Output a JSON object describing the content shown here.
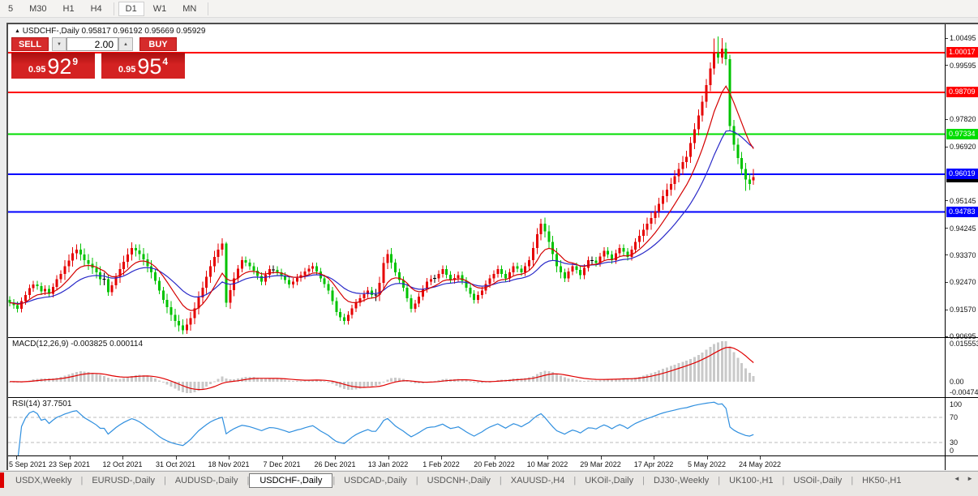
{
  "toolbar": {
    "periods": [
      "5",
      "M30",
      "H1",
      "H4",
      "D1",
      "W1",
      "MN"
    ],
    "active": "D1"
  },
  "chart": {
    "title_symbol": "USDCHF-,Daily",
    "title_ohlc": "0.95817 0.96192 0.95669 0.95929",
    "trade_panel": {
      "sell_label": "SELL",
      "buy_label": "BUY",
      "volume": "2.00",
      "sell_price": {
        "base": "0.95",
        "big": "92",
        "sup": "9"
      },
      "buy_price": {
        "base": "0.95",
        "big": "95",
        "sup": "4"
      }
    },
    "levels": [
      {
        "label": "1.00017",
        "value": 1.00017,
        "color": "#ff0000"
      },
      {
        "label": "0.98709",
        "value": 0.98709,
        "color": "#ff0000"
      },
      {
        "label": "0.97334",
        "value": 0.97334,
        "color": "#00dd00"
      },
      {
        "label": "0.96019",
        "value": 0.96019,
        "color": "#0000ff"
      },
      {
        "label": "0.94783",
        "value": 0.94783,
        "color": "#0000ff"
      }
    ],
    "current_price": {
      "label": "0.95929",
      "value": 0.95929,
      "color": "#000000"
    },
    "price_axis_labels": [
      {
        "label": "1.00495",
        "value": 1.00495
      },
      {
        "label": "0.99595",
        "value": 0.99595
      },
      {
        "label": "0.97820",
        "value": 0.9782
      },
      {
        "label": "0.96920",
        "value": 0.9692
      },
      {
        "label": "0.95145",
        "value": 0.95145
      },
      {
        "label": "0.94245",
        "value": 0.94245
      },
      {
        "label": "0.93370",
        "value": 0.9337
      },
      {
        "label": "0.92470",
        "value": 0.9247
      },
      {
        "label": "0.91570",
        "value": 0.9157
      },
      {
        "label": "0.90695",
        "value": 0.90695
      }
    ]
  },
  "macd_pane": {
    "label": "MACD(12,26,9) -0.003825 0.000114",
    "axis_max_label": "0.0155534",
    "axis_zero_label": "0.00",
    "axis_min_label": "-0.0047479"
  },
  "rsi_pane": {
    "label": "RSI(14) 37.7501",
    "axis_labels": [
      {
        "label": "100",
        "value": 100
      },
      {
        "label": "70",
        "value": 70
      },
      {
        "label": "30",
        "value": 30
      },
      {
        "label": "0",
        "value": 0
      }
    ],
    "levels": [
      70,
      30
    ]
  },
  "date_axis": {
    "labels": [
      "5 Sep 2021",
      "23 Sep 2021",
      "12 Oct 2021",
      "31 Oct 2021",
      "18 Nov 2021",
      "7 Dec 2021",
      "26 Dec 2021",
      "13 Jan 2022",
      "1 Feb 2022",
      "20 Feb 2022",
      "10 Mar 2022",
      "29 Mar 2022",
      "17 Apr 2022",
      "5 May 2022",
      "24 May 2022"
    ]
  },
  "tabbar": {
    "tabs": [
      "USDX,Weekly",
      "EURUSD-,Daily",
      "AUDUSD-,Daily",
      "USDCHF-,Daily",
      "USDCAD-,Daily",
      "USDCNH-,Daily",
      "XAUUSD-,H4",
      "UKOil-,Daily",
      "DJ30-,Weekly",
      "UK100-,H1",
      "USOil-,Daily",
      "HK50-,H1"
    ],
    "active": "USDCHF-,Daily",
    "left_arrow": "◄",
    "right_arrow": "►"
  },
  "colors": {
    "bull": "#e60000",
    "bear": "#00c300",
    "doji": "#000000",
    "ma_fast": "#d40000",
    "ma_slow": "#2929c8",
    "macd_hist": "#c9c9c9",
    "macd_signal": "#e00000",
    "rsi_line": "#2f8fdf",
    "rsi_level_dash": "#bbbbbb",
    "badge_text": "#ffffff"
  },
  "chart_data": {
    "type": "candlestick",
    "symbol": "USDCHF-",
    "timeframe": "Daily",
    "ohlc_current": {
      "open": 0.95817,
      "high": 0.96192,
      "low": 0.95669,
      "close": 0.95929
    },
    "price_range": [
      0.90695,
      1.00495
    ],
    "indicators": {
      "ma_fast_period": 10,
      "ma_slow_period": 22,
      "macd": "12,26,9",
      "rsi_period": 14
    },
    "candles": [
      [
        0.919,
        0.9202,
        0.9168,
        0.918
      ],
      [
        0.918,
        0.9192,
        0.916,
        0.9172
      ],
      [
        0.9172,
        0.9184,
        0.9148,
        0.916
      ],
      [
        0.916,
        0.9197,
        0.9148,
        0.9185
      ],
      [
        0.9185,
        0.9217,
        0.9173,
        0.9205
      ],
      [
        0.9205,
        0.924,
        0.9193,
        0.9228
      ],
      [
        0.9228,
        0.9252,
        0.9216,
        0.924
      ],
      [
        0.924,
        0.9252,
        0.9223,
        0.9235
      ],
      [
        0.9235,
        0.9247,
        0.9206,
        0.9218
      ],
      [
        0.9218,
        0.9237,
        0.9206,
        0.9225
      ],
      [
        0.9225,
        0.9237,
        0.9198,
        0.921
      ],
      [
        0.921,
        0.9244,
        0.9198,
        0.9232
      ],
      [
        0.9232,
        0.927,
        0.922,
        0.9258
      ],
      [
        0.9258,
        0.9287,
        0.9246,
        0.9275
      ],
      [
        0.9275,
        0.932,
        0.9255,
        0.93
      ],
      [
        0.93,
        0.9338,
        0.928,
        0.9318
      ],
      [
        0.9318,
        0.9362,
        0.9298,
        0.9342
      ],
      [
        0.9342,
        0.9372,
        0.9322,
        0.9355
      ],
      [
        0.9355,
        0.9375,
        0.9318,
        0.9338
      ],
      [
        0.9338,
        0.9358,
        0.93,
        0.932
      ],
      [
        0.932,
        0.934,
        0.9288,
        0.9308
      ],
      [
        0.9308,
        0.9328,
        0.9275,
        0.9295
      ],
      [
        0.9295,
        0.9315,
        0.926,
        0.928
      ],
      [
        0.928,
        0.93,
        0.9238,
        0.9258
      ],
      [
        0.9258,
        0.9278,
        0.9238,
        0.9258
      ],
      [
        0.9258,
        0.927,
        0.9203,
        0.9215
      ],
      [
        0.9215,
        0.925,
        0.9203,
        0.9238
      ],
      [
        0.9238,
        0.9277,
        0.9226,
        0.9265
      ],
      [
        0.9265,
        0.931,
        0.9245,
        0.929
      ],
      [
        0.929,
        0.9335,
        0.927,
        0.9315
      ],
      [
        0.9315,
        0.9358,
        0.9295,
        0.9338
      ],
      [
        0.9338,
        0.9378,
        0.9318,
        0.936
      ],
      [
        0.936,
        0.9372,
        0.9332,
        0.9352
      ],
      [
        0.9352,
        0.9372,
        0.932,
        0.934
      ],
      [
        0.934,
        0.936,
        0.9302,
        0.9322
      ],
      [
        0.9322,
        0.9342,
        0.928,
        0.93
      ],
      [
        0.93,
        0.932,
        0.926,
        0.928
      ],
      [
        0.928,
        0.9292,
        0.924,
        0.9252
      ],
      [
        0.9252,
        0.9264,
        0.9208,
        0.922
      ],
      [
        0.922,
        0.9232,
        0.9178,
        0.919
      ],
      [
        0.919,
        0.921,
        0.9145,
        0.9165
      ],
      [
        0.9165,
        0.9185,
        0.912,
        0.914
      ],
      [
        0.914,
        0.916,
        0.91,
        0.912
      ],
      [
        0.912,
        0.914,
        0.9085,
        0.9105
      ],
      [
        0.9105,
        0.9125,
        0.9076,
        0.909
      ],
      [
        0.909,
        0.9128,
        0.9078,
        0.9108
      ],
      [
        0.9108,
        0.915,
        0.9088,
        0.913
      ],
      [
        0.913,
        0.9182,
        0.911,
        0.9162
      ],
      [
        0.9162,
        0.9218,
        0.9142,
        0.9198
      ],
      [
        0.9198,
        0.925,
        0.9178,
        0.923
      ],
      [
        0.923,
        0.9285,
        0.921,
        0.9265
      ],
      [
        0.9265,
        0.932,
        0.9245,
        0.93
      ],
      [
        0.93,
        0.935,
        0.928,
        0.933
      ],
      [
        0.933,
        0.9375,
        0.931,
        0.9355
      ],
      [
        0.9355,
        0.9392,
        0.9335,
        0.9375
      ],
      [
        0.9375,
        0.938,
        0.9165,
        0.918
      ],
      [
        0.918,
        0.9242,
        0.916,
        0.9222
      ],
      [
        0.9222,
        0.928,
        0.9202,
        0.926
      ],
      [
        0.926,
        0.9304,
        0.9248,
        0.9292
      ],
      [
        0.9292,
        0.9332,
        0.928,
        0.932
      ],
      [
        0.932,
        0.9332,
        0.93,
        0.9312
      ],
      [
        0.9312,
        0.9324,
        0.9288,
        0.93
      ],
      [
        0.93,
        0.9312,
        0.9273,
        0.9285
      ],
      [
        0.9285,
        0.9297,
        0.9256,
        0.9268
      ],
      [
        0.9268,
        0.928,
        0.9238,
        0.925
      ],
      [
        0.925,
        0.9284,
        0.9238,
        0.9272
      ],
      [
        0.9272,
        0.9302,
        0.926,
        0.929
      ],
      [
        0.929,
        0.9302,
        0.9276,
        0.9288
      ],
      [
        0.9288,
        0.93,
        0.9268,
        0.928
      ],
      [
        0.928,
        0.9292,
        0.9256,
        0.9268
      ],
      [
        0.9268,
        0.928,
        0.9243,
        0.9255
      ],
      [
        0.9255,
        0.9267,
        0.9228,
        0.924
      ],
      [
        0.924,
        0.9262,
        0.9228,
        0.925
      ],
      [
        0.925,
        0.9274,
        0.9238,
        0.9262
      ],
      [
        0.9262,
        0.9282,
        0.925,
        0.927
      ],
      [
        0.927,
        0.9294,
        0.9258,
        0.9282
      ],
      [
        0.9282,
        0.9304,
        0.927,
        0.9292
      ],
      [
        0.9292,
        0.9312,
        0.928,
        0.93
      ],
      [
        0.93,
        0.9312,
        0.927,
        0.9282
      ],
      [
        0.9282,
        0.9294,
        0.9248,
        0.926
      ],
      [
        0.926,
        0.9272,
        0.923,
        0.9242
      ],
      [
        0.9242,
        0.9254,
        0.9208,
        0.922
      ],
      [
        0.922,
        0.9232,
        0.9173,
        0.9185
      ],
      [
        0.9185,
        0.9197,
        0.9138,
        0.915
      ],
      [
        0.915,
        0.9162,
        0.912,
        0.9132
      ],
      [
        0.9132,
        0.9144,
        0.9108,
        0.912
      ],
      [
        0.912,
        0.9152,
        0.9108,
        0.914
      ],
      [
        0.914,
        0.9174,
        0.9128,
        0.9162
      ],
      [
        0.9162,
        0.9192,
        0.915,
        0.918
      ],
      [
        0.918,
        0.9207,
        0.9168,
        0.9195
      ],
      [
        0.9195,
        0.922,
        0.9183,
        0.9208
      ],
      [
        0.9208,
        0.9232,
        0.9196,
        0.922
      ],
      [
        0.922,
        0.9232,
        0.9193,
        0.9205
      ],
      [
        0.9205,
        0.9225,
        0.9185,
        0.9205
      ],
      [
        0.9205,
        0.9265,
        0.9185,
        0.9245
      ],
      [
        0.9245,
        0.933,
        0.9225,
        0.931
      ],
      [
        0.931,
        0.9355,
        0.929,
        0.934
      ],
      [
        0.934,
        0.936,
        0.9292,
        0.9312
      ],
      [
        0.9312,
        0.9324,
        0.9268,
        0.928
      ],
      [
        0.928,
        0.9292,
        0.9243,
        0.9255
      ],
      [
        0.9255,
        0.9267,
        0.9218,
        0.923
      ],
      [
        0.923,
        0.9242,
        0.9183,
        0.9195
      ],
      [
        0.9195,
        0.9207,
        0.9148,
        0.916
      ],
      [
        0.916,
        0.919,
        0.9148,
        0.9178
      ],
      [
        0.9178,
        0.9212,
        0.9166,
        0.92
      ],
      [
        0.92,
        0.9237,
        0.9188,
        0.9225
      ],
      [
        0.9225,
        0.9262,
        0.9213,
        0.925
      ],
      [
        0.925,
        0.927,
        0.9238,
        0.9258
      ],
      [
        0.9258,
        0.9272,
        0.9246,
        0.926
      ],
      [
        0.926,
        0.9287,
        0.9248,
        0.9275
      ],
      [
        0.9275,
        0.9302,
        0.9263,
        0.929
      ],
      [
        0.929,
        0.9302,
        0.926,
        0.9272
      ],
      [
        0.9272,
        0.9284,
        0.9243,
        0.9255
      ],
      [
        0.9255,
        0.9274,
        0.9243,
        0.9262
      ],
      [
        0.9262,
        0.9282,
        0.925,
        0.927
      ],
      [
        0.927,
        0.9282,
        0.924,
        0.9252
      ],
      [
        0.9252,
        0.9264,
        0.9218,
        0.923
      ],
      [
        0.923,
        0.9242,
        0.9198,
        0.921
      ],
      [
        0.921,
        0.9222,
        0.9178,
        0.919
      ],
      [
        0.919,
        0.9217,
        0.9178,
        0.9205
      ],
      [
        0.9205,
        0.9232,
        0.9193,
        0.922
      ],
      [
        0.922,
        0.9254,
        0.9208,
        0.9242
      ],
      [
        0.9242,
        0.9272,
        0.923,
        0.926
      ],
      [
        0.926,
        0.9287,
        0.9248,
        0.9275
      ],
      [
        0.9275,
        0.9302,
        0.9263,
        0.929
      ],
      [
        0.929,
        0.9302,
        0.9263,
        0.9275
      ],
      [
        0.9275,
        0.9287,
        0.9248,
        0.926
      ],
      [
        0.926,
        0.9292,
        0.9248,
        0.928
      ],
      [
        0.928,
        0.9312,
        0.9268,
        0.93
      ],
      [
        0.93,
        0.9312,
        0.928,
        0.9292
      ],
      [
        0.9292,
        0.9304,
        0.9268,
        0.928
      ],
      [
        0.928,
        0.9312,
        0.9268,
        0.93
      ],
      [
        0.93,
        0.9332,
        0.9288,
        0.932
      ],
      [
        0.932,
        0.938,
        0.93,
        0.936
      ],
      [
        0.936,
        0.9425,
        0.934,
        0.9405
      ],
      [
        0.9405,
        0.9456,
        0.9385,
        0.944
      ],
      [
        0.944,
        0.946,
        0.9395,
        0.9415
      ],
      [
        0.9415,
        0.9435,
        0.936,
        0.938
      ],
      [
        0.938,
        0.94,
        0.932,
        0.934
      ],
      [
        0.934,
        0.936,
        0.928,
        0.93
      ],
      [
        0.93,
        0.932,
        0.926,
        0.928
      ],
      [
        0.928,
        0.9292,
        0.9248,
        0.926
      ],
      [
        0.926,
        0.9294,
        0.9248,
        0.9282
      ],
      [
        0.9282,
        0.9312,
        0.927,
        0.93
      ],
      [
        0.93,
        0.9312,
        0.9276,
        0.9288
      ],
      [
        0.9288,
        0.93,
        0.9258,
        0.927
      ],
      [
        0.927,
        0.9307,
        0.9258,
        0.9295
      ],
      [
        0.9295,
        0.9332,
        0.9283,
        0.932
      ],
      [
        0.932,
        0.9332,
        0.9306,
        0.9318
      ],
      [
        0.9318,
        0.933,
        0.9298,
        0.931
      ],
      [
        0.931,
        0.9344,
        0.9298,
        0.9332
      ],
      [
        0.9332,
        0.9362,
        0.932,
        0.935
      ],
      [
        0.935,
        0.9362,
        0.9326,
        0.9338
      ],
      [
        0.9338,
        0.935,
        0.9308,
        0.932
      ],
      [
        0.932,
        0.9354,
        0.9308,
        0.9342
      ],
      [
        0.9342,
        0.9372,
        0.933,
        0.936
      ],
      [
        0.936,
        0.9372,
        0.9336,
        0.9348
      ],
      [
        0.9348,
        0.936,
        0.9318,
        0.933
      ],
      [
        0.933,
        0.9367,
        0.9318,
        0.9355
      ],
      [
        0.9355,
        0.9392,
        0.9343,
        0.938
      ],
      [
        0.938,
        0.942,
        0.936,
        0.94
      ],
      [
        0.94,
        0.944,
        0.938,
        0.942
      ],
      [
        0.942,
        0.946,
        0.94,
        0.944
      ],
      [
        0.944,
        0.9478,
        0.942,
        0.9458
      ],
      [
        0.9458,
        0.95,
        0.9438,
        0.948
      ],
      [
        0.948,
        0.9525,
        0.946,
        0.9505
      ],
      [
        0.9505,
        0.955,
        0.9485,
        0.953
      ],
      [
        0.953,
        0.9572,
        0.951,
        0.9552
      ],
      [
        0.9552,
        0.959,
        0.9532,
        0.957
      ],
      [
        0.957,
        0.9615,
        0.955,
        0.9595
      ],
      [
        0.9595,
        0.964,
        0.9575,
        0.962
      ],
      [
        0.962,
        0.9662,
        0.96,
        0.9642
      ],
      [
        0.9642,
        0.968,
        0.9622,
        0.966
      ],
      [
        0.966,
        0.9725,
        0.964,
        0.9705
      ],
      [
        0.9705,
        0.977,
        0.9685,
        0.975
      ],
      [
        0.975,
        0.9815,
        0.973,
        0.9795
      ],
      [
        0.9795,
        0.986,
        0.9775,
        0.984
      ],
      [
        0.984,
        0.9915,
        0.982,
        0.9895
      ],
      [
        0.9895,
        0.997,
        0.9875,
        0.995
      ],
      [
        0.995,
        1.0048,
        0.993,
        1.0
      ],
      [
        1.0,
        1.0055,
        0.9965,
        0.9985
      ],
      [
        0.9985,
        1.005,
        0.9965,
        1.0015
      ],
      [
        1.0015,
        1.0035,
        0.996,
        0.998
      ],
      [
        0.998,
        0.9995,
        0.9745,
        0.976
      ],
      [
        0.976,
        0.978,
        0.968,
        0.97
      ],
      [
        0.97,
        0.972,
        0.9635,
        0.9655
      ],
      [
        0.9655,
        0.9675,
        0.96,
        0.962
      ],
      [
        0.962,
        0.964,
        0.9548,
        0.9585
      ],
      [
        0.9585,
        0.9605,
        0.955,
        0.957
      ],
      [
        0.95817,
        0.96192,
        0.95669,
        0.95929
      ]
    ]
  }
}
